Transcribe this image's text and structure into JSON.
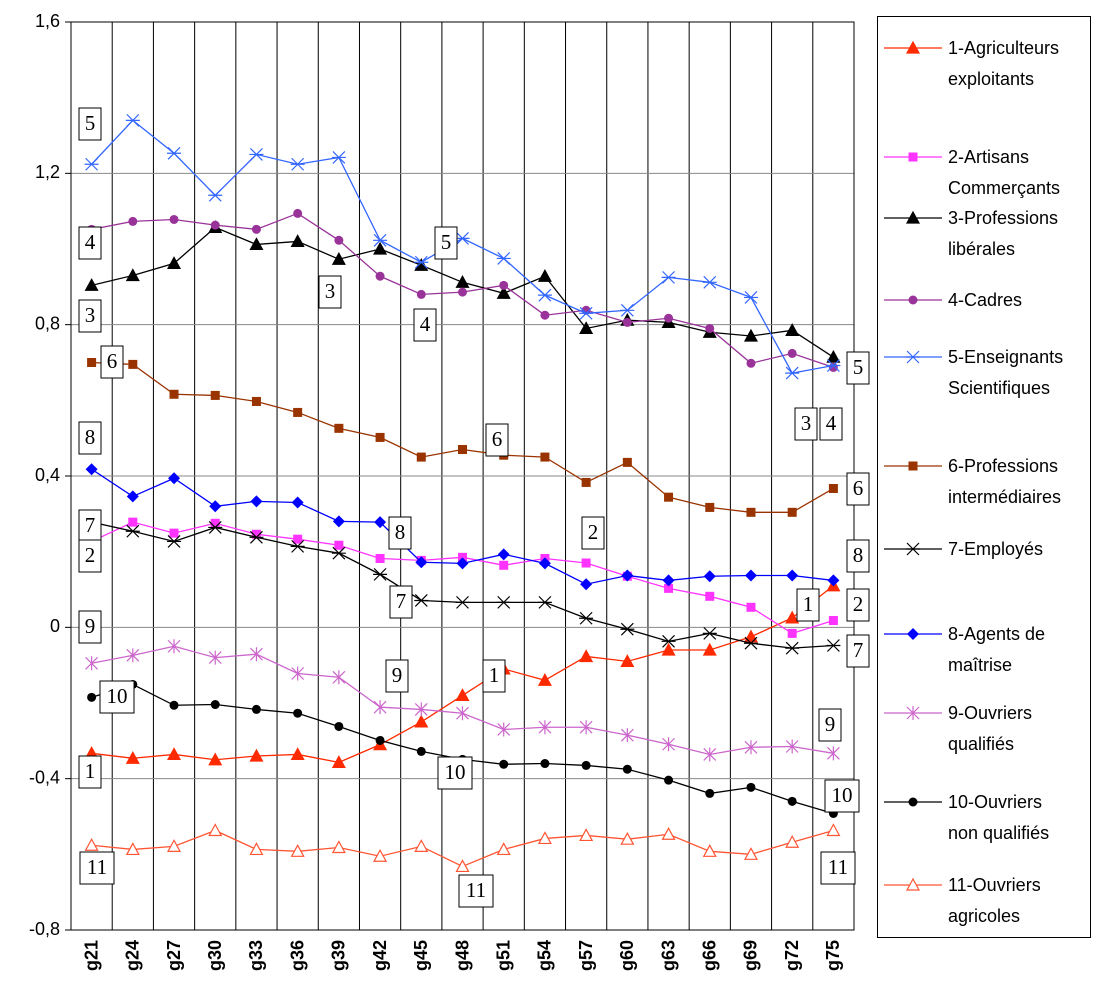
{
  "chart_data": {
    "type": "line",
    "categories": [
      "g21",
      "g24",
      "g27",
      "g30",
      "g33",
      "g36",
      "g39",
      "g42",
      "g45",
      "g48",
      "g51",
      "g54",
      "g57",
      "g60",
      "g63",
      "g66",
      "g69",
      "g72",
      "g75"
    ],
    "ylim": [
      -0.8,
      1.6
    ],
    "yticks": [
      {
        "value": -0.8,
        "label": "-0,8"
      },
      {
        "value": -0.4,
        "label": "-0,4"
      },
      0,
      {
        "value": 0.4,
        "label": "0,4"
      },
      {
        "value": 0.8,
        "label": "0,8"
      },
      {
        "value": 1.2,
        "label": "1,2"
      },
      {
        "value": 1.6,
        "label": "1,6"
      }
    ],
    "grid": true,
    "legend": "right",
    "series": [
      {
        "name": "1-Agriculteurs exploitants",
        "color": "#ff2a00",
        "marker": "triangle",
        "values": [
          -0.333,
          -0.346,
          -0.336,
          -0.35,
          -0.34,
          -0.336,
          -0.357,
          -0.31,
          -0.25,
          -0.18,
          -0.11,
          -0.14,
          -0.077,
          -0.09,
          -0.06,
          -0.06,
          -0.025,
          0.025,
          0.11
        ]
      },
      {
        "name": "2-Artisans Commerçants",
        "color": "#ff33ff",
        "marker": "square",
        "values": [
          0.227,
          0.278,
          0.249,
          0.275,
          0.246,
          0.233,
          0.217,
          0.182,
          0.177,
          0.185,
          0.164,
          0.182,
          0.17,
          0.135,
          0.103,
          0.082,
          0.053,
          -0.016,
          0.018
        ]
      },
      {
        "name": "3-Professions libérales",
        "color": "#000000",
        "marker": "triangle",
        "values": [
          0.904,
          0.93,
          0.962,
          1.057,
          1.012,
          1.02,
          0.973,
          1.0,
          0.957,
          0.912,
          0.883,
          0.928,
          0.79,
          0.812,
          0.806,
          0.78,
          0.77,
          0.785,
          0.714
        ]
      },
      {
        "name": "4-Cadres",
        "color": "#993399",
        "marker": "circle",
        "values": [
          1.052,
          1.073,
          1.078,
          1.063,
          1.052,
          1.094,
          1.023,
          0.928,
          0.88,
          0.886,
          0.904,
          0.825,
          0.838,
          0.806,
          0.817,
          0.79,
          0.698,
          0.724,
          0.687
        ]
      },
      {
        "name": "5-Enseignants Scientifiques",
        "color": "#3366ff",
        "marker": "asterisk",
        "values": [
          1.224,
          1.34,
          1.253,
          1.142,
          1.25,
          1.224,
          1.242,
          1.023,
          0.965,
          1.028,
          0.975,
          0.878,
          0.83,
          0.838,
          0.925,
          0.912,
          0.872,
          0.672,
          0.692
        ]
      },
      {
        "name": "6-Professions intermédiaires",
        "color": "#993300",
        "marker": "square",
        "values": [
          0.7,
          0.695,
          0.616,
          0.613,
          0.597,
          0.568,
          0.526,
          0.502,
          0.45,
          0.47,
          0.455,
          0.45,
          0.383,
          0.436,
          0.344,
          0.317,
          0.304,
          0.304,
          0.367
        ]
      },
      {
        "name": "7-Employés",
        "color": "#000000",
        "marker": "asterisk",
        "values": [
          0.278,
          0.254,
          0.227,
          0.264,
          0.238,
          0.214,
          0.196,
          0.14,
          0.071,
          0.066,
          0.066,
          0.066,
          0.024,
          -0.005,
          -0.037,
          -0.016,
          -0.042,
          -0.055,
          -0.048
        ]
      },
      {
        "name": "8-Agents de maîtrise",
        "color": "#0000ff",
        "marker": "diamond",
        "values": [
          0.418,
          0.346,
          0.394,
          0.32,
          0.333,
          0.33,
          0.28,
          0.278,
          0.172,
          0.169,
          0.193,
          0.169,
          0.114,
          0.137,
          0.124,
          0.135,
          0.137,
          0.137,
          0.124
        ]
      },
      {
        "name": "9-Ouvriers qualifiés",
        "color": "#cc66cc",
        "marker": "xstar",
        "values": [
          -0.095,
          -0.074,
          -0.05,
          -0.08,
          -0.071,
          -0.122,
          -0.132,
          -0.211,
          -0.217,
          -0.227,
          -0.27,
          -0.264,
          -0.264,
          -0.285,
          -0.309,
          -0.336,
          -0.317,
          -0.315,
          -0.333
        ]
      },
      {
        "name": "10-Ouvriers non qualifiés",
        "color": "#000000",
        "marker": "circle",
        "values": [
          -0.185,
          -0.151,
          -0.206,
          -0.204,
          -0.217,
          -0.227,
          -0.262,
          -0.299,
          -0.328,
          -0.349,
          -0.362,
          -0.36,
          -0.365,
          -0.375,
          -0.404,
          -0.439,
          -0.423,
          -0.46,
          -0.492
        ]
      },
      {
        "name": "11-Ouvriers agricoles",
        "color": "#ff5533",
        "marker": "open-triangle",
        "values": [
          -0.576,
          -0.587,
          -0.579,
          -0.537,
          -0.587,
          -0.592,
          -0.582,
          -0.605,
          -0.579,
          -0.632,
          -0.587,
          -0.558,
          -0.55,
          -0.56,
          -0.547,
          -0.592,
          -0.6,
          -0.568,
          -0.537
        ]
      }
    ],
    "annotations": [
      "5",
      "4",
      "3",
      "6",
      "8",
      "7",
      "2",
      "9",
      "10",
      "1",
      "11",
      "3",
      "5",
      "4",
      "8",
      "6",
      "9",
      "7",
      "1",
      "10",
      "11",
      "2",
      "3",
      "4",
      "5",
      "6",
      "8",
      "1",
      "2",
      "7",
      "9",
      "10",
      "11"
    ]
  }
}
